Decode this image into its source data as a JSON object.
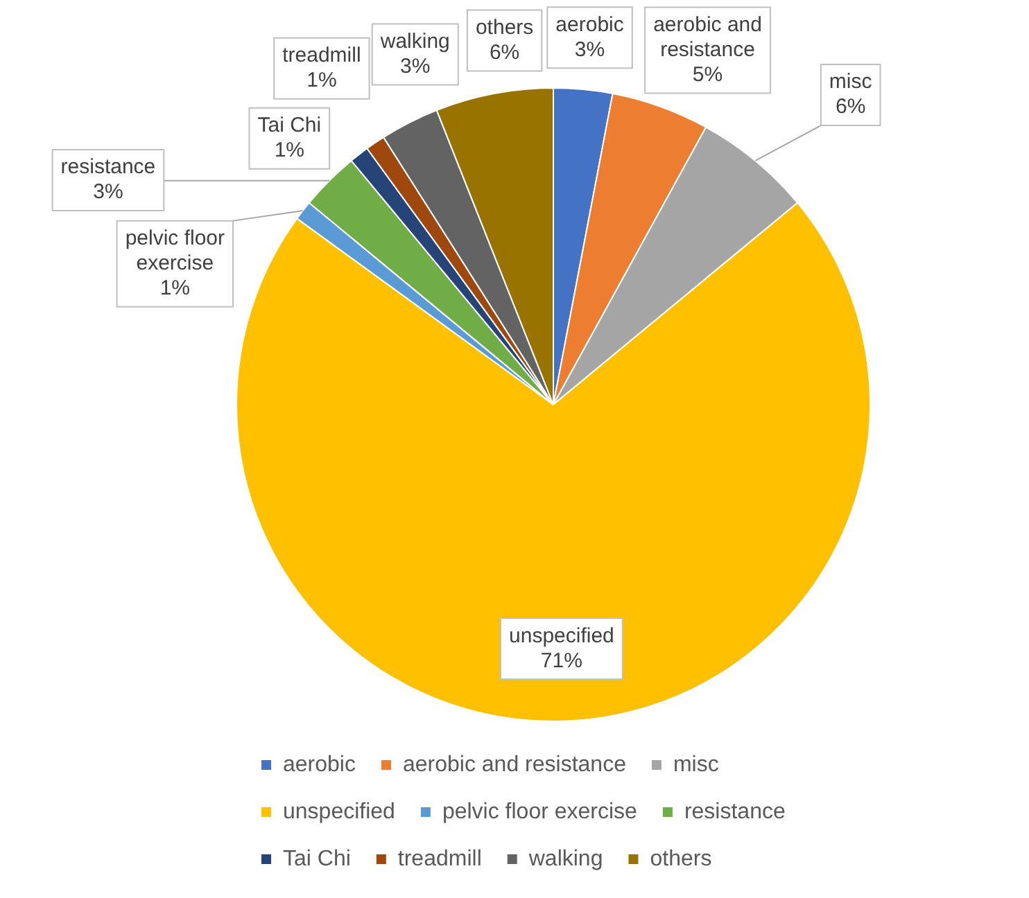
{
  "chart_data": {
    "type": "pie",
    "categories": [
      "aerobic",
      "aerobic and resistance",
      "misc",
      "unspecified",
      "pelvic floor exercise",
      "resistance",
      "Tai Chi",
      "treadmill",
      "walking",
      "others"
    ],
    "values": [
      3,
      5,
      6,
      71,
      1,
      3,
      1,
      1,
      3,
      6
    ],
    "value_labels": [
      "3%",
      "5%",
      "6%",
      "71%",
      "1%",
      "3%",
      "1%",
      "1%",
      "3%",
      "6%"
    ],
    "colors": [
      "#4472c4",
      "#ed7d31",
      "#a5a5a5",
      "#ffc000",
      "#5b9bd5",
      "#70ad47",
      "#264478",
      "#9e480e",
      "#636363",
      "#997300"
    ],
    "legend": "bottom"
  }
}
